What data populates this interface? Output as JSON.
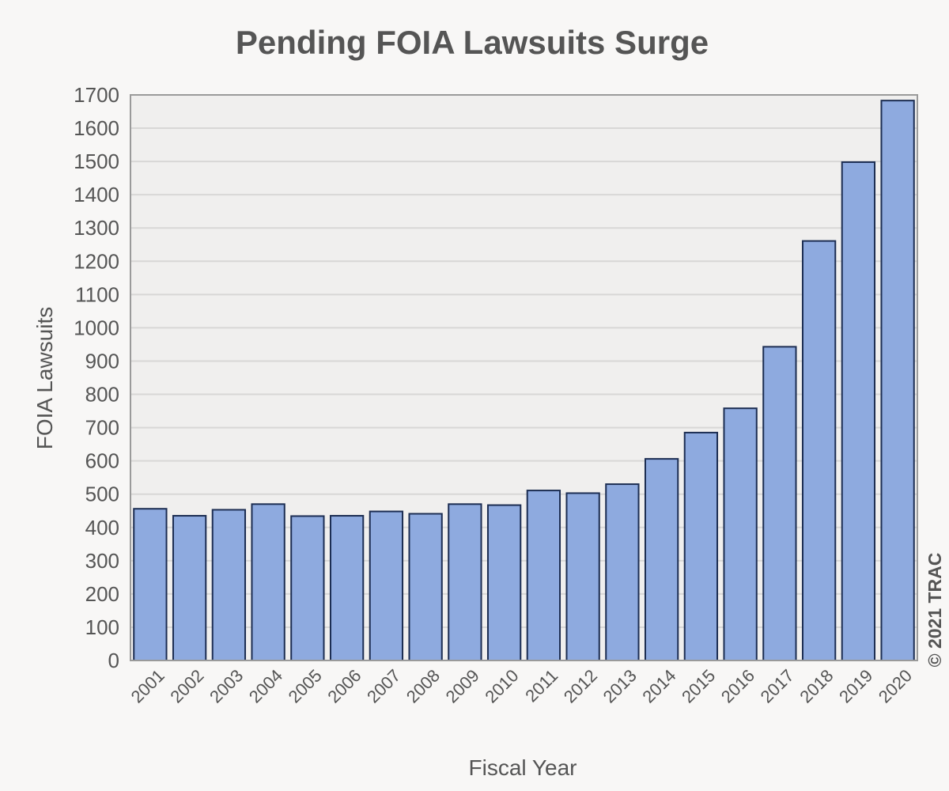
{
  "chart_data": {
    "type": "bar",
    "title": "Pending FOIA Lawsuits Surge",
    "xlabel": "Fiscal Year",
    "ylabel": "FOIA Lawsuits",
    "credit": "© 2021 TRAC",
    "categories": [
      "2001",
      "2002",
      "2003",
      "2004",
      "2005",
      "2006",
      "2007",
      "2008",
      "2009",
      "2010",
      "2011",
      "2012",
      "2013",
      "2014",
      "2015",
      "2016",
      "2017",
      "2018",
      "2019",
      "2020"
    ],
    "values": [
      456,
      435,
      453,
      470,
      434,
      435,
      448,
      441,
      470,
      467,
      511,
      503,
      530,
      606,
      685,
      758,
      943,
      1261,
      1498,
      1683
    ],
    "ylim": [
      0,
      1700
    ],
    "yticks": [
      0,
      100,
      200,
      300,
      400,
      500,
      600,
      700,
      800,
      900,
      1000,
      1100,
      1200,
      1300,
      1400,
      1500,
      1600,
      1700
    ],
    "grid": true,
    "colors": {
      "bar_fill": "#8eaadf",
      "bar_stroke": "#1c2d52",
      "plot_bg": "#f0efee",
      "grid": "#d8d7d6",
      "axis": "#9a9a9a",
      "text": "#555555"
    }
  }
}
